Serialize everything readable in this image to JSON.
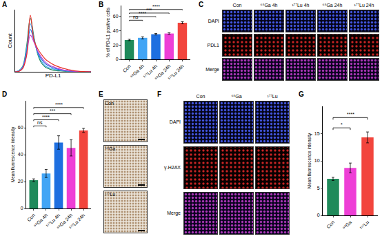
{
  "chart_data": [
    {
      "type": "line",
      "title": "A",
      "x": [
        0,
        1,
        2,
        3,
        4,
        5,
        6,
        7,
        8,
        9,
        10,
        11,
        12,
        13,
        14,
        15,
        16,
        17,
        18,
        19,
        20
      ],
      "series": [
        {
          "color": "#1f8a5a",
          "values": [
            0,
            2,
            10,
            45,
            95,
            60,
            30,
            15,
            8,
            5,
            3,
            2,
            1.5,
            1,
            0.5,
            0.3,
            0.2,
            0.1,
            0,
            0,
            0
          ]
        },
        {
          "color": "#42a5f5",
          "values": [
            0,
            2,
            9,
            40,
            85,
            58,
            32,
            18,
            10,
            7,
            5,
            3.5,
            2.5,
            1.5,
            1,
            0.6,
            0.3,
            0.2,
            0.1,
            0,
            0
          ]
        },
        {
          "color": "#1e6fe0",
          "values": [
            0,
            1,
            8,
            35,
            75,
            55,
            34,
            22,
            14,
            10,
            7,
            5,
            3.5,
            2.5,
            1.5,
            1,
            0.5,
            0.3,
            0.1,
            0,
            0
          ]
        },
        {
          "color": "#c23fd6",
          "values": [
            0,
            1,
            7,
            30,
            65,
            52,
            36,
            25,
            17,
            12,
            9,
            6.5,
            4.5,
            3,
            2,
            1.2,
            0.7,
            0.4,
            0.2,
            0.1,
            0
          ]
        },
        {
          "color": "#e8322b",
          "values": [
            0,
            1,
            6,
            28,
            100,
            55,
            40,
            30,
            22,
            17,
            13,
            10,
            7.5,
            5.5,
            4,
            2.5,
            1.5,
            0.8,
            0.4,
            0.2,
            0
          ]
        }
      ],
      "x_label": "PD-L1",
      "y_label": "Count",
      "xlim": [
        0,
        20
      ],
      "ylim": [
        0,
        110
      ],
      "xticks": [],
      "yticks": [],
      "tick_labels": false
    },
    {
      "type": "bar",
      "title": "B",
      "categories": [
        "Con",
        "⁶⁸Ga 4h",
        "¹⁷⁷Lu 4h",
        "⁶⁸Ga 24h",
        "¹⁷⁷Lu 24h"
      ],
      "values": [
        27,
        30,
        35,
        36,
        51
      ],
      "error": [
        1,
        1.5,
        1,
        1,
        1.5
      ],
      "colors": [
        "#1f8a5a",
        "#42a5f5",
        "#1e6fe0",
        "#ee3fd6",
        "#f2453d"
      ],
      "y_label": "% of PD-L1 positive cells",
      "ylim": [
        0,
        75
      ],
      "yticks": [
        0,
        20,
        40,
        60
      ],
      "annotations": [
        {
          "text": "ns",
          "from": "Con",
          "to": "⁶⁸Ga 4h"
        },
        {
          "text": "****",
          "from": "Con",
          "to": "¹⁷⁷Lu 4h"
        },
        {
          "text": "***",
          "from": "Con",
          "to": "⁶⁸Ga 24h"
        },
        {
          "text": "****",
          "from": "Con",
          "to": "¹⁷⁷Lu 24h"
        }
      ]
    },
    {
      "type": "bar",
      "title": "D",
      "categories": [
        "Con",
        "⁶⁸Ga 4h",
        "¹⁷⁷Lu 4h",
        "⁶⁸Ga 24h",
        "¹⁷⁷Lu 24h"
      ],
      "values": [
        21,
        26,
        49,
        45,
        58
      ],
      "error": [
        1,
        3,
        5,
        6,
        1.5
      ],
      "colors": [
        "#1f8a5a",
        "#42a5f5",
        "#1e6fe0",
        "#ee3fd6",
        "#f2453d"
      ],
      "y_label": "Mean fluorescence intensity",
      "ylim": [
        0,
        80
      ],
      "yticks": [
        0,
        20,
        40,
        60
      ],
      "annotations": [
        {
          "text": "ns",
          "from": "Con",
          "to": "⁶⁸Ga 4h"
        },
        {
          "text": "****",
          "from": "Con",
          "to": "¹⁷⁷Lu 4h"
        },
        {
          "text": "***",
          "from": "Con",
          "to": "⁶⁸Ga 24h"
        },
        {
          "text": "****",
          "from": "Con",
          "to": "¹⁷⁷Lu 24h"
        }
      ]
    },
    {
      "type": "bar",
      "title": "G",
      "categories": [
        "Con",
        "⁶⁸Ga",
        "¹⁷⁷Lu"
      ],
      "values": [
        6.7,
        8.7,
        14.3
      ],
      "error": [
        0.3,
        0.9,
        1.0
      ],
      "colors": [
        "#1f8a5a",
        "#ee3fd6",
        "#f2453d"
      ],
      "y_label": "Mean fluorescence intensity",
      "ylim": [
        0,
        20
      ],
      "yticks": [
        0,
        5,
        10,
        15
      ],
      "annotations": [
        {
          "text": "*",
          "from": "Con",
          "to": "⁶⁸Ga"
        },
        {
          "text": "****",
          "from": "Con",
          "to": "¹⁷⁷Lu"
        }
      ]
    }
  ],
  "image_panels": [
    {
      "title": "C",
      "columns": [
        "Con",
        "⁶⁸Ga 4h",
        "¹⁷⁷Lu 4h",
        "⁶⁸Ga 24h",
        "¹⁷⁷Lu 24h"
      ],
      "rows": [
        "DAPI",
        "PDL1",
        "Merge"
      ]
    },
    {
      "title": "E",
      "images": [
        "Con",
        "⁶⁸Ga",
        "¹⁷⁷Lu"
      ]
    },
    {
      "title": "F",
      "columns": [
        "Con",
        "⁶⁸Ga",
        "¹⁷⁷Lu"
      ],
      "rows": [
        "DAPI",
        "γ-H2AX",
        "Merge"
      ]
    }
  ]
}
